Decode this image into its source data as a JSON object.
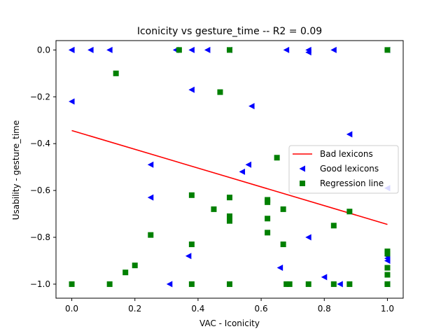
{
  "chart_data": {
    "type": "scatter",
    "title": "Iconicity  vs  gesture_time -- R2 = 0.09",
    "xlabel": "VAC - Iconicity",
    "ylabel": "Usability - gesture_time",
    "xlim": [
      -0.05,
      1.05
    ],
    "ylim": [
      -1.06,
      0.04
    ],
    "xticks": [
      0.0,
      0.2,
      0.4,
      0.6,
      0.8,
      1.0
    ],
    "xtick_labels": [
      "0.0",
      "0.2",
      "0.4",
      "0.6",
      "0.8",
      "1.0"
    ],
    "yticks": [
      0.0,
      -0.2,
      -0.4,
      -0.6,
      -0.8,
      -1.0
    ],
    "ytick_labels": [
      "0.0",
      "−0.2",
      "−0.4",
      "−0.6",
      "−0.8",
      "−1.0"
    ],
    "grid": false,
    "legend_position": "center-right",
    "series": [
      {
        "name": "Bad lexicons",
        "kind": "line",
        "color": "#ff0000",
        "x": [
          0.0,
          1.0
        ],
        "y": [
          -0.344,
          -0.745
        ]
      },
      {
        "name": "Good lexicons",
        "kind": "scatter",
        "marker": "triangle-left",
        "color": "#0000ff",
        "x": [
          0.0,
          0.0,
          0.06,
          0.12,
          0.33,
          0.38,
          0.43,
          0.5,
          0.68,
          0.75,
          0.75,
          0.83,
          1.0,
          0.0,
          0.38,
          0.57,
          0.88,
          0.25,
          0.56,
          0.54,
          1.0,
          0.25,
          0.75,
          0.37,
          0.66,
          0.8,
          0.31,
          0.85,
          1.0,
          1.0,
          1.0,
          1.0
        ],
        "y": [
          0.0,
          0.0,
          0.0,
          0.0,
          0.0,
          0.0,
          0.0,
          0.0,
          0.0,
          0.0,
          -0.01,
          0.0,
          0.0,
          -0.22,
          -0.17,
          -0.24,
          -0.36,
          -0.49,
          -0.49,
          -0.52,
          -0.59,
          -0.63,
          -0.8,
          -0.88,
          -0.93,
          -0.97,
          -1.0,
          -1.0,
          -0.88,
          -0.89,
          -0.9,
          -1.0
        ]
      },
      {
        "name": "Regression line",
        "kind": "scatter",
        "marker": "square",
        "color": "#008000",
        "x": [
          0.34,
          0.5,
          1.0,
          0.14,
          0.47,
          0.65,
          0.62,
          0.62,
          0.38,
          0.67,
          0.5,
          0.45,
          0.88,
          0.5,
          0.5,
          0.62,
          0.83,
          0.62,
          0.25,
          0.38,
          0.67,
          0.2,
          0.17,
          0.0,
          0.12,
          0.38,
          0.5,
          0.68,
          0.69,
          0.75,
          0.83,
          0.88,
          1.0,
          1.0,
          1.0,
          1.0,
          1.0,
          1.0
        ],
        "y": [
          0.0,
          0.0,
          0.0,
          -0.1,
          -0.18,
          -0.46,
          -0.64,
          -0.65,
          -0.62,
          -0.68,
          -0.63,
          -0.68,
          -0.69,
          -0.71,
          -0.73,
          -0.72,
          -0.75,
          -0.78,
          -0.79,
          -0.83,
          -0.83,
          -0.92,
          -0.95,
          -1.0,
          -1.0,
          -1.0,
          -1.0,
          -1.0,
          -1.0,
          -1.0,
          -1.0,
          -1.0,
          -0.86,
          -0.87,
          -0.93,
          -0.96,
          -1.0,
          -1.0
        ]
      }
    ]
  }
}
